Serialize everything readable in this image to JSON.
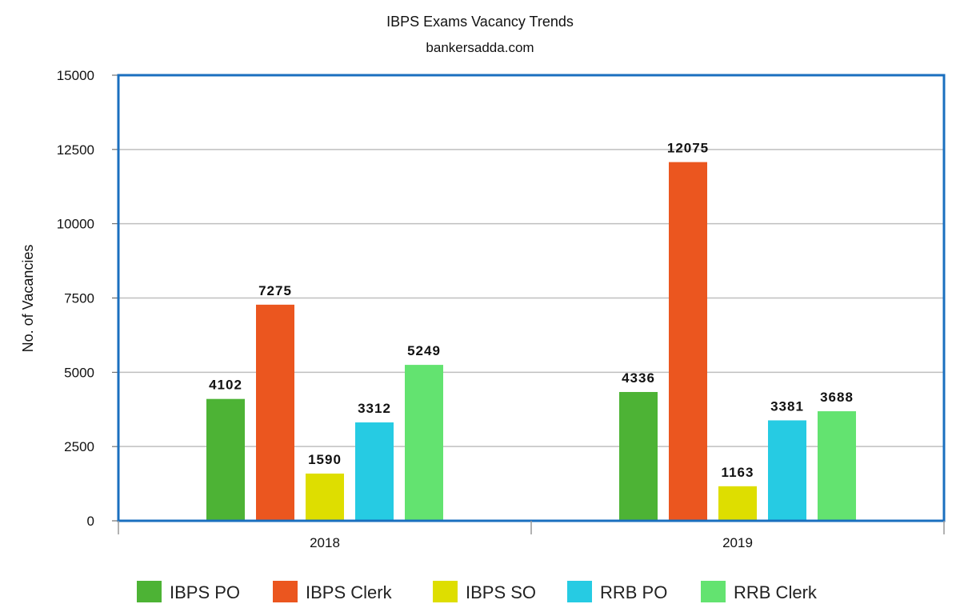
{
  "chart_data": {
    "type": "bar",
    "title": "IBPS Exams Vacancy Trends",
    "subtitle": "bankersadda.com",
    "xlabel": "",
    "ylabel": "No. of Vacancies",
    "ylim": [
      0,
      15000
    ],
    "yticks": [
      0,
      2500,
      5000,
      7500,
      10000,
      12500,
      15000
    ],
    "grid": true,
    "legend_position": "bottom",
    "categories": [
      "2018",
      "2019"
    ],
    "series": [
      {
        "name": "IBPS PO",
        "color": "#4db335",
        "values": [
          4102,
          4336
        ]
      },
      {
        "name": "IBPS Clerk",
        "color": "#eb561f",
        "values": [
          7275,
          12075
        ]
      },
      {
        "name": "IBPS SO",
        "color": "#dede00",
        "values": [
          1590,
          1163
        ]
      },
      {
        "name": "RRB PO",
        "color": "#26cbe3",
        "values": [
          3312,
          3381
        ]
      },
      {
        "name": "RRB Clerk",
        "color": "#63e370",
        "values": [
          5249,
          3688
        ]
      }
    ],
    "data_labels": [
      [
        "4102",
        "7275",
        "1590",
        "3312",
        "5249"
      ],
      [
        "4336",
        "12075",
        "1163",
        "3381",
        "3688"
      ]
    ],
    "plot_border_color": "#1a6fbf",
    "gridline_color": "#bfbfbf"
  }
}
